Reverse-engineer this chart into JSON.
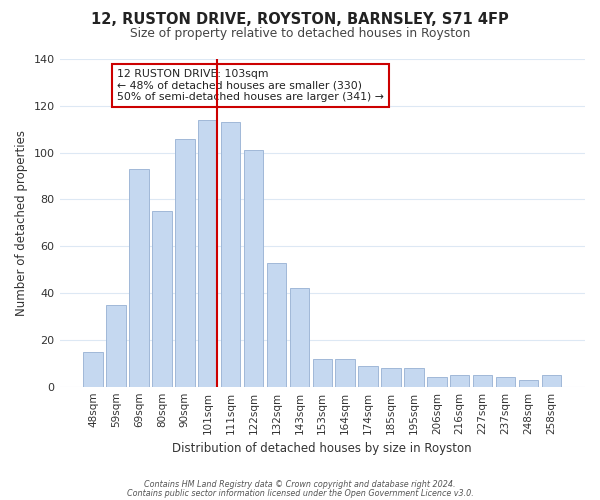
{
  "title": "12, RUSTON DRIVE, ROYSTON, BARNSLEY, S71 4FP",
  "subtitle": "Size of property relative to detached houses in Royston",
  "xlabel": "Distribution of detached houses by size in Royston",
  "ylabel": "Number of detached properties",
  "bar_labels": [
    "48sqm",
    "59sqm",
    "69sqm",
    "80sqm",
    "90sqm",
    "101sqm",
    "111sqm",
    "122sqm",
    "132sqm",
    "143sqm",
    "153sqm",
    "164sqm",
    "174sqm",
    "185sqm",
    "195sqm",
    "206sqm",
    "216sqm",
    "227sqm",
    "237sqm",
    "248sqm",
    "258sqm"
  ],
  "bar_values": [
    15,
    35,
    93,
    75,
    106,
    114,
    113,
    101,
    53,
    42,
    12,
    12,
    9,
    8,
    8,
    4,
    5,
    5,
    4,
    3,
    5
  ],
  "bar_color": "#c5d8f0",
  "bar_edge_color": "#a0b8d8",
  "highlight_index": 5,
  "vline_color": "#cc0000",
  "ylim": [
    0,
    140
  ],
  "yticks": [
    0,
    20,
    40,
    60,
    80,
    100,
    120,
    140
  ],
  "annotation_text": "12 RUSTON DRIVE: 103sqm\n← 48% of detached houses are smaller (330)\n50% of semi-detached houses are larger (341) →",
  "annotation_box_color": "#ffffff",
  "annotation_box_edge": "#cc0000",
  "footer_line1": "Contains HM Land Registry data © Crown copyright and database right 2024.",
  "footer_line2": "Contains public sector information licensed under the Open Government Licence v3.0.",
  "background_color": "#ffffff",
  "grid_color": "#dde8f4"
}
